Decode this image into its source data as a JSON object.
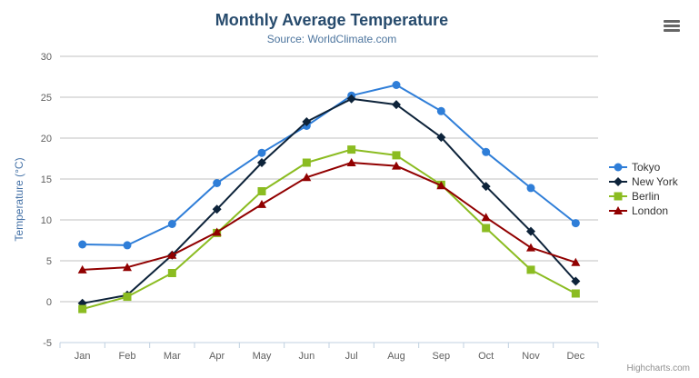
{
  "chart": {
    "title": "Monthly Average Temperature",
    "subtitle": "Source: WorldClimate.com",
    "credits": "Highcharts.com",
    "export_menu_icon": "hamburger-icon",
    "colors": {
      "title": "#274b6d",
      "subtitle": "#4d759e",
      "axis_labels": "#606060",
      "axis_title": "#4572a7",
      "gridline": "#c0c0c0",
      "axis_line": "#c0d0e0",
      "legend_text": "#333333"
    }
  },
  "chart_data": {
    "type": "line",
    "title": "Monthly Average Temperature",
    "subtitle": "Source: WorldClimate.com",
    "categories": [
      "Jan",
      "Feb",
      "Mar",
      "Apr",
      "May",
      "Jun",
      "Jul",
      "Aug",
      "Sep",
      "Oct",
      "Nov",
      "Dec"
    ],
    "series": [
      {
        "name": "Tokyo",
        "color": "#2f7ed8",
        "marker": "circle",
        "values": [
          7.0,
          6.9,
          9.5,
          14.5,
          18.2,
          21.5,
          25.2,
          26.5,
          23.3,
          18.3,
          13.9,
          9.6
        ]
      },
      {
        "name": "New York",
        "color": "#0d233a",
        "marker": "diamond",
        "values": [
          -0.2,
          0.8,
          5.7,
          11.3,
          17.0,
          22.0,
          24.8,
          24.1,
          20.1,
          14.1,
          8.6,
          2.5
        ]
      },
      {
        "name": "Berlin",
        "color": "#8bbc21",
        "marker": "square",
        "values": [
          -0.9,
          0.6,
          3.5,
          8.4,
          13.5,
          17.0,
          18.6,
          17.9,
          14.3,
          9.0,
          3.9,
          1.0
        ]
      },
      {
        "name": "London",
        "color": "#910000",
        "marker": "triangle",
        "values": [
          3.9,
          4.2,
          5.7,
          8.5,
          11.9,
          15.2,
          17.0,
          16.6,
          14.2,
          10.3,
          6.6,
          4.8
        ]
      }
    ],
    "xlabel": "",
    "ylabel": "Temperature (°C)",
    "ylim": [
      -5,
      30
    ],
    "ytick_step": 5,
    "grid": true,
    "legend_position": "right"
  }
}
